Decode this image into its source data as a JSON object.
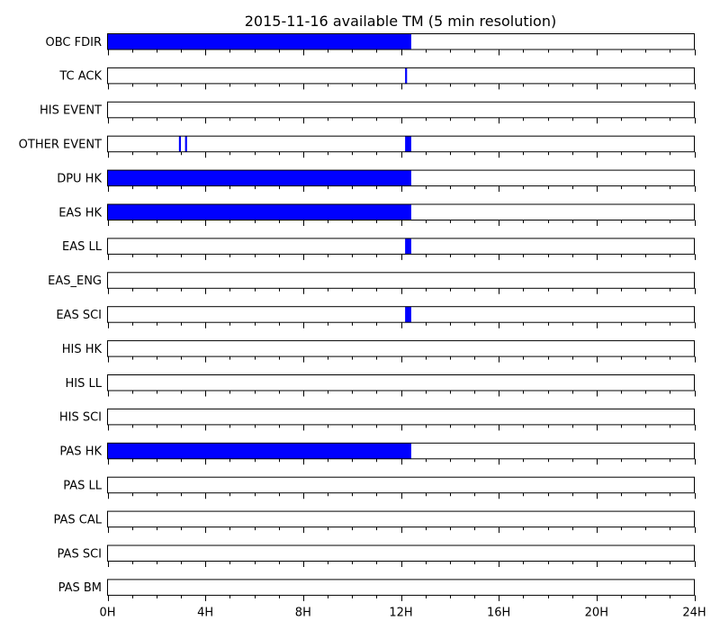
{
  "chart_data": {
    "type": "bar",
    "title": "2015-11-16 available TM (5 min resolution)",
    "xlabel": "",
    "ylabel": "",
    "x_unit": "hours",
    "xlim": [
      0,
      24
    ],
    "x_ticks": [
      0,
      4,
      8,
      12,
      16,
      20,
      24
    ],
    "x_tick_labels": [
      "0H",
      "4H",
      "8H",
      "12H",
      "16H",
      "20H",
      "24H"
    ],
    "minor_tick_step_hours": 1,
    "grid": false,
    "bar_color": "#0000ff",
    "series": [
      {
        "name": "OBC FDIR",
        "intervals": [
          [
            0,
            12.42
          ]
        ]
      },
      {
        "name": "TC ACK",
        "intervals": [
          [
            12.17,
            12.25
          ]
        ]
      },
      {
        "name": "HIS EVENT",
        "intervals": []
      },
      {
        "name": "OTHER EVENT",
        "intervals": [
          [
            2.92,
            3.0
          ],
          [
            3.17,
            3.25
          ],
          [
            12.17,
            12.42
          ]
        ]
      },
      {
        "name": "DPU HK",
        "intervals": [
          [
            0,
            12.42
          ]
        ]
      },
      {
        "name": "EAS HK",
        "intervals": [
          [
            0,
            12.42
          ]
        ]
      },
      {
        "name": "EAS LL",
        "intervals": [
          [
            12.17,
            12.42
          ]
        ]
      },
      {
        "name": "EAS_ENG",
        "intervals": []
      },
      {
        "name": "EAS SCI",
        "intervals": [
          [
            12.17,
            12.42
          ]
        ]
      },
      {
        "name": "HIS HK",
        "intervals": []
      },
      {
        "name": "HIS LL",
        "intervals": []
      },
      {
        "name": "HIS SCI",
        "intervals": []
      },
      {
        "name": "PAS HK",
        "intervals": [
          [
            0,
            12.42
          ]
        ]
      },
      {
        "name": "PAS LL",
        "intervals": []
      },
      {
        "name": "PAS CAL",
        "intervals": []
      },
      {
        "name": "PAS SCI",
        "intervals": []
      },
      {
        "name": "PAS BM",
        "intervals": []
      }
    ]
  }
}
